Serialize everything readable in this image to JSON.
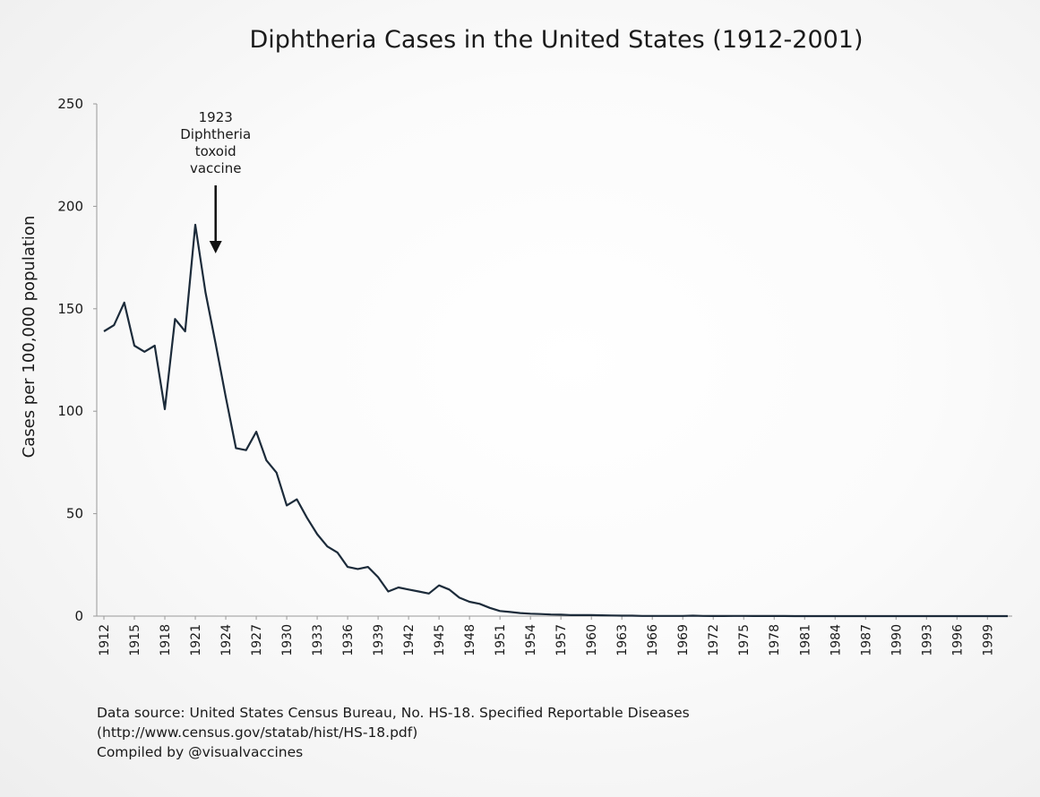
{
  "chart_data": {
    "type": "line",
    "title": "Diphtheria Cases in the United States (1912-2001)",
    "xlabel": "",
    "ylabel": "Cases per 100,000 population",
    "ylim": [
      0,
      250
    ],
    "yticks": [
      0,
      50,
      100,
      150,
      200,
      250
    ],
    "xlim": [
      1912,
      2001
    ],
    "xticks": [
      1912,
      1915,
      1918,
      1921,
      1924,
      1927,
      1930,
      1933,
      1936,
      1939,
      1942,
      1945,
      1948,
      1951,
      1954,
      1957,
      1960,
      1963,
      1966,
      1969,
      1972,
      1975,
      1978,
      1981,
      1984,
      1987,
      1990,
      1993,
      1996,
      1999
    ],
    "grid": false,
    "line_color": "#1c2b3a",
    "series": [
      {
        "x": [
          1912,
          1913,
          1914,
          1915,
          1916,
          1917,
          1918,
          1919,
          1920,
          1921,
          1922,
          1923,
          1924,
          1925,
          1926,
          1927,
          1928,
          1929,
          1930,
          1931,
          1932,
          1933,
          1934,
          1935,
          1936,
          1937,
          1938,
          1939,
          1940,
          1941,
          1942,
          1943,
          1944,
          1945,
          1946,
          1947,
          1948,
          1949,
          1950,
          1951,
          1952,
          1953,
          1954,
          1955,
          1956,
          1957,
          1958,
          1959,
          1960,
          1961,
          1962,
          1963,
          1964,
          1965,
          1966,
          1967,
          1968,
          1969,
          1970,
          1971,
          1972,
          1973,
          1974,
          1975,
          1976,
          1977,
          1978,
          1979,
          1980,
          1981,
          1982,
          1983,
          1984,
          1985,
          1986,
          1987,
          1988,
          1989,
          1990,
          1991,
          1992,
          1993,
          1994,
          1995,
          1996,
          1997,
          1998,
          1999,
          2000,
          2001
        ],
        "values": [
          139,
          142,
          153,
          132,
          129,
          132,
          101,
          145,
          139,
          191,
          158,
          133,
          107,
          82,
          81,
          90,
          76,
          70,
          54,
          57,
          48,
          40,
          34,
          31,
          24,
          23,
          24,
          19,
          12,
          14,
          13,
          12,
          11,
          15,
          13,
          9,
          7,
          6,
          4,
          2.5,
          2,
          1.5,
          1.2,
          1,
          0.8,
          0.7,
          0.5,
          0.5,
          0.5,
          0.4,
          0.3,
          0.2,
          0.2,
          0.1,
          0.1,
          0.1,
          0.1,
          0.1,
          0.2,
          0.1,
          0.05,
          0.05,
          0.1,
          0.1,
          0.05,
          0.05,
          0.05,
          0.05,
          0.01,
          0.01,
          0.01,
          0.01,
          0.01,
          0.01,
          0.01,
          0.01,
          0.01,
          0.01,
          0.01,
          0.01,
          0.01,
          0.01,
          0.01,
          0.01,
          0.01,
          0.01,
          0.01,
          0.01,
          0.01,
          0.01
        ]
      }
    ],
    "annotation": {
      "x": 1923,
      "y": 177,
      "lines": [
        "1923",
        "Diphtheria",
        "toxoid",
        "vaccine"
      ]
    }
  },
  "source": {
    "line1": "Data source: United States Census Bureau, No. HS-18. Specified Reportable Diseases",
    "line2": "(http://www.census.gov/statab/hist/HS-18.pdf)",
    "line3": "Compiled by @visualvaccines"
  }
}
